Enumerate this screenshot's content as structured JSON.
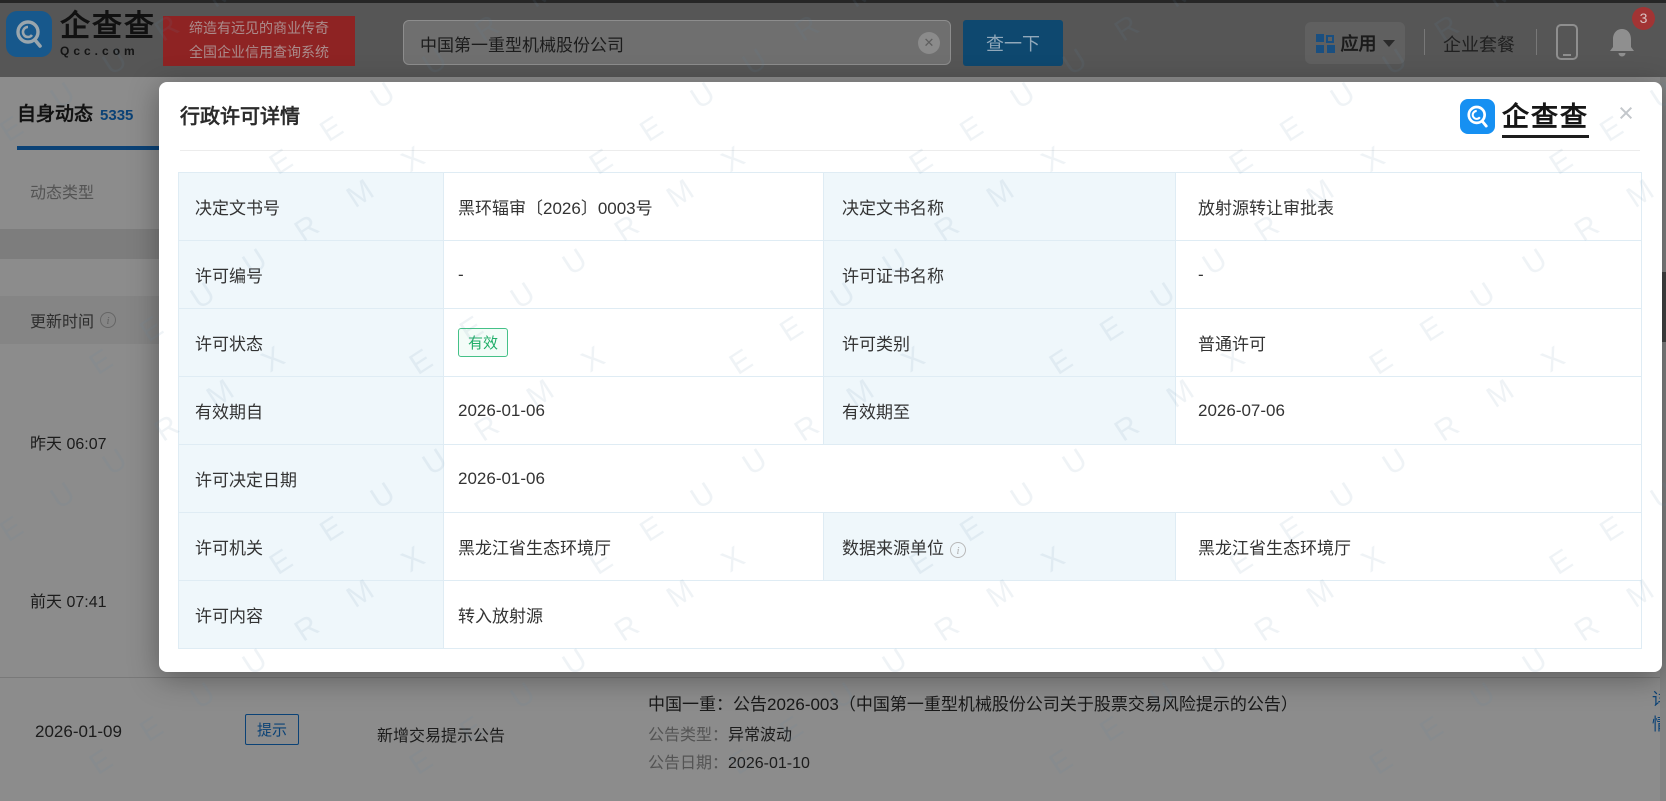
{
  "header": {
    "logo": {
      "name": "企查查",
      "domain": "Qcc.com"
    },
    "slogan_line1": "缔造有远见的商业传奇",
    "slogan_line2": "全国企业信用查询系统",
    "search": {
      "value": "中国第一重型机械股份公司",
      "button": "查一下",
      "clear": "x"
    },
    "nav": {
      "apps": "应用",
      "package": "企业套餐",
      "badge_count": "3"
    }
  },
  "page": {
    "tab": {
      "label": "自身动态",
      "count": "5335"
    },
    "filter_label": "动态类型",
    "table_header": "更新时间",
    "rows": [
      {
        "date": "昨天 06:07"
      },
      {
        "date": "前天 07:41"
      }
    ],
    "bottom_row": {
      "date": "2026-01-09",
      "tag": "提示",
      "event": "新增交易提示公告",
      "title": "中国一重：公告2026-003（中国第一重型机械股份公司关于股票交易风险提示的公告）",
      "type_label": "公告类型：",
      "type_value": "异常波动",
      "date_label": "公告日期：",
      "date_value": "2026-01-10",
      "more": "详情"
    }
  },
  "modal": {
    "title": "行政许可详情",
    "logo_text": "企查查",
    "close": "×",
    "table": {
      "rows": [
        {
          "cells": [
            {
              "label": "决定文书号",
              "value": "黑环辐审〔2026〕0003号"
            },
            {
              "label": "决定文书名称",
              "value": "放射源转让审批表"
            }
          ]
        },
        {
          "cells": [
            {
              "label": "许可编号",
              "value": "-"
            },
            {
              "label": "许可证书名称",
              "value": "-"
            }
          ]
        },
        {
          "cells": [
            {
              "label": "许可状态",
              "value": "有效"
            },
            {
              "label": "许可类别",
              "value": "普通许可"
            }
          ]
        },
        {
          "cells": [
            {
              "label": "有效期自",
              "value": "2026-01-06"
            },
            {
              "label": "有效期至",
              "value": "2026-07-06"
            }
          ]
        },
        {
          "cells": [
            {
              "label": "许可决定日期",
              "value": "2026-01-06"
            }
          ]
        },
        {
          "cells": [
            {
              "label": "许可机关",
              "value": "黑龙江省生态环境厅"
            },
            {
              "label": "数据来源单位",
              "value": "黑龙江省生态环境厅"
            }
          ]
        },
        {
          "cells": [
            {
              "label": "许可内容",
              "value": "转入放射源"
            }
          ]
        }
      ]
    }
  },
  "watermark_text": "E E U U R M X",
  "colors": {
    "brand_blue": "#1479d7",
    "badge_green": "#1fad68",
    "banner_red": "#e03c3c",
    "label_cell_bg": "#eff7fb"
  }
}
